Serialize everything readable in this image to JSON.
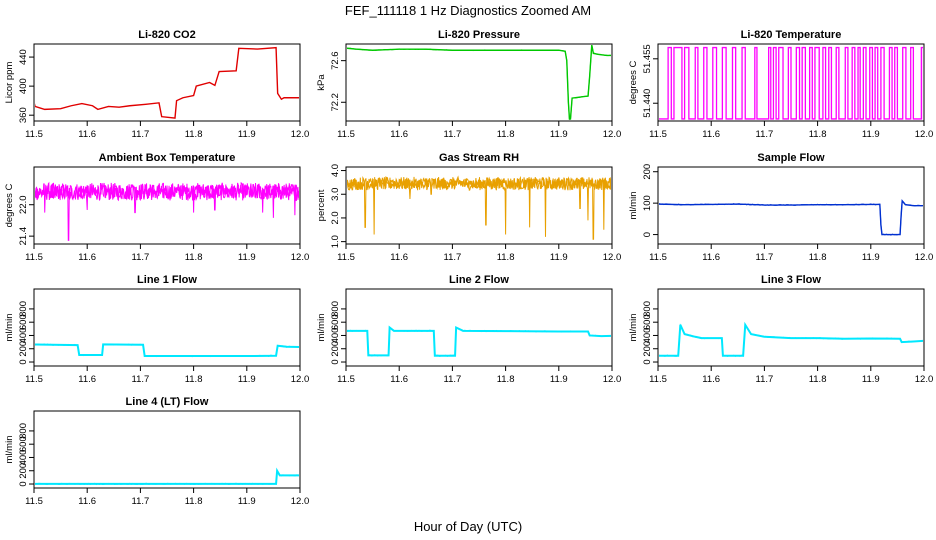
{
  "figure": {
    "title": "FEF_111118  1 Hz Diagnostics Zoomed AM",
    "xlabel": "Hour of Day (UTC)"
  },
  "chart_data": [
    {
      "type": "line",
      "title": "Li-820 CO2",
      "ylabel": "Licor ppm",
      "color": "#e00000",
      "xlim": [
        11.5,
        12.0
      ],
      "xticks": [
        11.5,
        11.6,
        11.7,
        11.8,
        11.9,
        12.0
      ],
      "ylim": [
        352,
        458
      ],
      "yticks": [
        360,
        400,
        440
      ],
      "style": "stairs",
      "points": [
        [
          11.5,
          378
        ],
        [
          11.502,
          372
        ],
        [
          11.52,
          368
        ],
        [
          11.55,
          369
        ],
        [
          11.57,
          373
        ],
        [
          11.59,
          376
        ],
        [
          11.61,
          373
        ],
        [
          11.62,
          368
        ],
        [
          11.64,
          372
        ],
        [
          11.66,
          371
        ],
        [
          11.68,
          373
        ],
        [
          11.71,
          375
        ],
        [
          11.735,
          377
        ],
        [
          11.74,
          358
        ],
        [
          11.765,
          356
        ],
        [
          11.768,
          380
        ],
        [
          11.78,
          384
        ],
        [
          11.8,
          387
        ],
        [
          11.805,
          400
        ],
        [
          11.83,
          405
        ],
        [
          11.84,
          401
        ],
        [
          11.848,
          420
        ],
        [
          11.88,
          421
        ],
        [
          11.885,
          452
        ],
        [
          11.92,
          451
        ],
        [
          11.955,
          453
        ],
        [
          11.958,
          390
        ],
        [
          11.965,
          382
        ],
        [
          11.97,
          384
        ],
        [
          11.98,
          384
        ],
        [
          12.0,
          384
        ]
      ]
    },
    {
      "type": "line",
      "title": "Li-820 Pressure",
      "ylabel": "kPa",
      "color": "#00c800",
      "xlim": [
        11.5,
        12.0
      ],
      "xticks": [
        11.5,
        11.6,
        11.7,
        11.8,
        11.9,
        12.0
      ],
      "ylim": [
        72.02,
        72.76
      ],
      "yticks": [
        72.2,
        72.6
      ],
      "style": "line",
      "points": [
        [
          11.5,
          72.72
        ],
        [
          11.52,
          72.71
        ],
        [
          11.55,
          72.7
        ],
        [
          11.6,
          72.71
        ],
        [
          11.65,
          72.71
        ],
        [
          11.7,
          72.7
        ],
        [
          11.75,
          72.7
        ],
        [
          11.8,
          72.7
        ],
        [
          11.85,
          72.7
        ],
        [
          11.9,
          72.7
        ],
        [
          11.912,
          72.69
        ],
        [
          11.915,
          72.6
        ],
        [
          11.918,
          72.2
        ],
        [
          11.92,
          72.04
        ],
        [
          11.922,
          72.04
        ],
        [
          11.925,
          72.24
        ],
        [
          11.94,
          72.25
        ],
        [
          11.955,
          72.26
        ],
        [
          11.958,
          72.45
        ],
        [
          11.962,
          72.75
        ],
        [
          11.965,
          72.67
        ],
        [
          11.975,
          72.66
        ],
        [
          11.99,
          72.65
        ],
        [
          12.0,
          72.65
        ]
      ]
    },
    {
      "type": "line",
      "title": "Li-820 Temperature",
      "ylabel": "degrees C",
      "color": "#ff00ff",
      "xlim": [
        11.5,
        12.0
      ],
      "xticks": [
        11.5,
        11.6,
        11.7,
        11.8,
        11.9,
        12.0
      ],
      "ylim": [
        51.434,
        51.46
      ],
      "yticks": [
        51.44,
        51.455
      ],
      "style": "toggle",
      "low": 51.4347,
      "high": 51.4588,
      "toggles": [
        11.519,
        11.525,
        11.53,
        11.545,
        11.55,
        11.558,
        11.57,
        11.575,
        11.586,
        11.592,
        11.603,
        11.61,
        11.621,
        11.628,
        11.64,
        11.646,
        11.658,
        11.664,
        11.682,
        11.686,
        11.708,
        11.712,
        11.717,
        11.722,
        11.727,
        11.735,
        11.745,
        11.75,
        11.76,
        11.766,
        11.771,
        11.777,
        11.785,
        11.79,
        11.795,
        11.803,
        11.81,
        11.815,
        11.821,
        11.826,
        11.835,
        11.84,
        11.852,
        11.857,
        11.865,
        11.87,
        11.876,
        11.88,
        11.886,
        11.891,
        11.898,
        11.903,
        11.908,
        11.913,
        11.919,
        11.925,
        11.935,
        11.94,
        11.945,
        11.95,
        11.96,
        11.966,
        11.975,
        11.98,
        11.995,
        11.999
      ]
    },
    {
      "type": "line",
      "title": "Ambient Box Temperature",
      "ylabel": "degrees C",
      "color": "#ff00ff",
      "xlim": [
        11.5,
        12.0
      ],
      "xticks": [
        11.5,
        11.6,
        11.7,
        11.8,
        11.9,
        12.0
      ],
      "ylim": [
        21.25,
        22.72
      ],
      "yticks": [
        21.4,
        22.0
      ],
      "style": "noise",
      "base": 22.25,
      "amp": 0.17,
      "dips": [
        [
          11.565,
          21.32
        ],
        [
          11.52,
          21.85
        ],
        [
          11.6,
          21.9
        ],
        [
          11.69,
          21.85
        ],
        [
          11.8,
          21.85
        ],
        [
          11.84,
          21.9
        ],
        [
          11.93,
          21.85
        ],
        [
          11.95,
          21.75
        ],
        [
          11.99,
          21.8
        ]
      ]
    },
    {
      "type": "line",
      "title": "Gas Stream RH",
      "ylabel": "percent",
      "color": "#e8a000",
      "xlim": [
        11.5,
        12.0
      ],
      "xticks": [
        11.5,
        11.6,
        11.7,
        11.8,
        11.9,
        12.0
      ],
      "ylim": [
        0.9,
        4.15
      ],
      "yticks": [
        1.0,
        2.0,
        3.0,
        4.0
      ],
      "style": "noise",
      "base": 3.45,
      "amp": 0.28,
      "dips": [
        [
          11.536,
          1.6
        ],
        [
          11.553,
          1.3
        ],
        [
          11.62,
          2.8
        ],
        [
          11.66,
          3.0
        ],
        [
          11.763,
          1.7
        ],
        [
          11.8,
          1.3
        ],
        [
          11.845,
          1.6
        ],
        [
          11.875,
          1.2
        ],
        [
          11.94,
          2.4
        ],
        [
          11.955,
          1.9
        ],
        [
          11.965,
          1.1
        ],
        [
          11.985,
          1.5
        ]
      ]
    },
    {
      "type": "line",
      "title": "Sample Flow",
      "ylabel": "ml/min",
      "color": "#0030d0",
      "xlim": [
        11.5,
        12.0
      ],
      "xticks": [
        11.5,
        11.6,
        11.7,
        11.8,
        11.9,
        12.0
      ],
      "ylim": [
        -30,
        215
      ],
      "yticks": [
        0,
        100,
        200
      ],
      "style": "line",
      "points": [
        [
          11.5,
          97
        ],
        [
          11.55,
          95
        ],
        [
          11.6,
          96
        ],
        [
          11.65,
          97
        ],
        [
          11.7,
          94
        ],
        [
          11.75,
          94
        ],
        [
          11.8,
          95
        ],
        [
          11.85,
          95
        ],
        [
          11.9,
          96
        ],
        [
          11.917,
          96
        ],
        [
          11.919,
          30
        ],
        [
          11.921,
          0
        ],
        [
          11.935,
          0
        ],
        [
          11.955,
          0
        ],
        [
          11.957,
          60
        ],
        [
          11.959,
          107
        ],
        [
          11.965,
          95
        ],
        [
          11.98,
          92
        ],
        [
          12.0,
          92
        ]
      ]
    },
    {
      "type": "line",
      "title": "Line 1 Flow",
      "ylabel": "ml/min",
      "color": "#00e8ff",
      "xlim": [
        11.5,
        12.0
      ],
      "xticks": [
        11.5,
        11.6,
        11.7,
        11.8,
        11.9,
        12.0
      ],
      "ylim": [
        -60,
        1100
      ],
      "yticks": [
        0,
        200,
        400,
        600,
        800
      ],
      "style": "stairs",
      "points": [
        [
          11.5,
          265
        ],
        [
          11.582,
          255
        ],
        [
          11.585,
          105
        ],
        [
          11.628,
          105
        ],
        [
          11.63,
          265
        ],
        [
          11.705,
          260
        ],
        [
          11.708,
          90
        ],
        [
          11.8,
          90
        ],
        [
          11.9,
          90
        ],
        [
          11.955,
          95
        ],
        [
          11.958,
          245
        ],
        [
          11.975,
          230
        ],
        [
          12.0,
          225
        ]
      ]
    },
    {
      "type": "line",
      "title": "Line 2 Flow",
      "ylabel": "ml/min",
      "color": "#00e8ff",
      "xlim": [
        11.5,
        12.0
      ],
      "xticks": [
        11.5,
        11.6,
        11.7,
        11.8,
        11.9,
        12.0
      ],
      "ylim": [
        -60,
        1100
      ],
      "yticks": [
        0,
        200,
        400,
        600,
        800
      ],
      "style": "stairs",
      "points": [
        [
          11.5,
          470
        ],
        [
          11.54,
          470
        ],
        [
          11.542,
          100
        ],
        [
          11.58,
          100
        ],
        [
          11.582,
          520
        ],
        [
          11.59,
          470
        ],
        [
          11.665,
          470
        ],
        [
          11.667,
          95
        ],
        [
          11.705,
          95
        ],
        [
          11.707,
          520
        ],
        [
          11.72,
          470
        ],
        [
          11.8,
          465
        ],
        [
          11.9,
          460
        ],
        [
          11.955,
          460
        ],
        [
          11.958,
          400
        ],
        [
          11.98,
          390
        ],
        [
          12.0,
          395
        ]
      ]
    },
    {
      "type": "line",
      "title": "Line 3 Flow",
      "ylabel": "ml/min",
      "color": "#00e8ff",
      "xlim": [
        11.5,
        12.0
      ],
      "xticks": [
        11.5,
        11.6,
        11.7,
        11.8,
        11.9,
        12.0
      ],
      "ylim": [
        -60,
        1100
      ],
      "yticks": [
        0,
        200,
        400,
        600,
        800
      ],
      "style": "stairs",
      "points": [
        [
          11.5,
          95
        ],
        [
          11.538,
          95
        ],
        [
          11.542,
          560
        ],
        [
          11.55,
          420
        ],
        [
          11.57,
          380
        ],
        [
          11.582,
          360
        ],
        [
          11.62,
          360
        ],
        [
          11.622,
          95
        ],
        [
          11.66,
          95
        ],
        [
          11.664,
          560
        ],
        [
          11.675,
          420
        ],
        [
          11.7,
          380
        ],
        [
          11.75,
          360
        ],
        [
          11.8,
          360
        ],
        [
          11.85,
          350
        ],
        [
          11.9,
          355
        ],
        [
          11.955,
          350
        ],
        [
          11.958,
          300
        ],
        [
          11.98,
          310
        ],
        [
          12.0,
          320
        ]
      ]
    },
    {
      "type": "line",
      "title": "Line 4 (LT) Flow",
      "ylabel": "ml/min",
      "color": "#00e8ff",
      "xlim": [
        11.5,
        12.0
      ],
      "xticks": [
        11.5,
        11.6,
        11.7,
        11.8,
        11.9,
        12.0
      ],
      "ylim": [
        -60,
        1100
      ],
      "yticks": [
        0,
        200,
        400,
        600,
        800
      ],
      "style": "stairs",
      "points": [
        [
          11.5,
          2
        ],
        [
          11.6,
          2
        ],
        [
          11.7,
          2
        ],
        [
          11.8,
          2
        ],
        [
          11.9,
          2
        ],
        [
          11.955,
          3
        ],
        [
          11.957,
          200
        ],
        [
          11.962,
          130
        ],
        [
          11.98,
          130
        ],
        [
          12.0,
          130
        ]
      ]
    }
  ]
}
